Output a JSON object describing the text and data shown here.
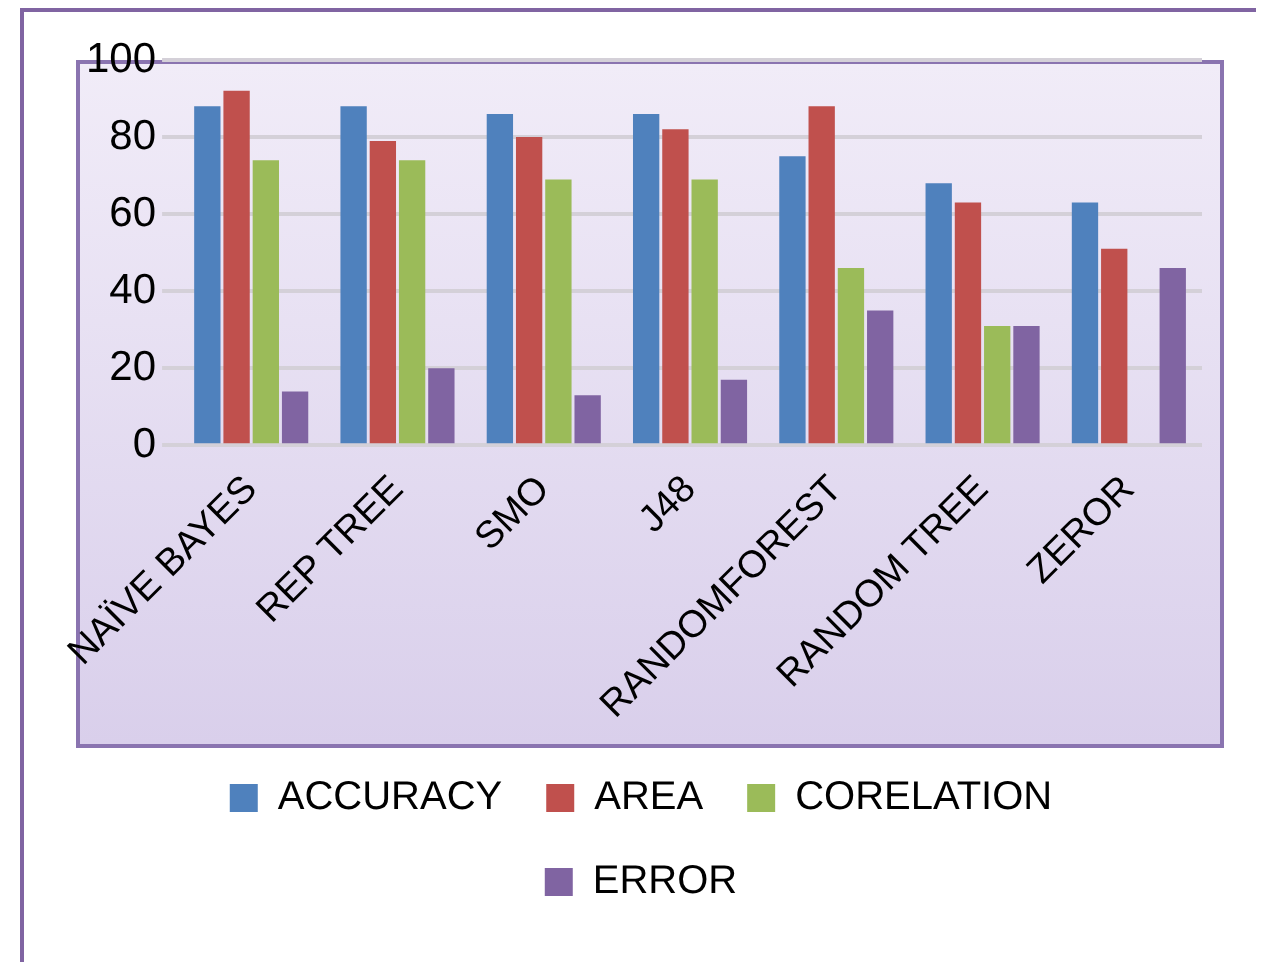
{
  "chart_data": {
    "type": "bar",
    "categories": [
      "NAÏVE BAYES",
      "REP TREE",
      "SMO",
      "J48",
      "RANDOMFOREST",
      "RANDOM TREE",
      "ZEROR"
    ],
    "series": [
      {
        "name": "ACCURACY",
        "color": "#4f81bd",
        "values": [
          88,
          88,
          86,
          86,
          75,
          68,
          63
        ]
      },
      {
        "name": "AREA",
        "color": "#c0504d",
        "values": [
          92,
          79,
          80,
          82,
          88,
          63,
          51
        ]
      },
      {
        "name": "CORELATION",
        "color": "#9bbb59",
        "values": [
          74,
          74,
          69,
          69,
          46,
          31,
          0
        ]
      },
      {
        "name": "ERROR",
        "color": "#8064a2",
        "values": [
          14,
          20,
          13,
          17,
          35,
          31,
          46
        ]
      }
    ],
    "ylim": [
      0,
      100
    ],
    "yticks": [
      0,
      20,
      40,
      60,
      80,
      100
    ],
    "grid": "y",
    "legend": "bottom"
  }
}
